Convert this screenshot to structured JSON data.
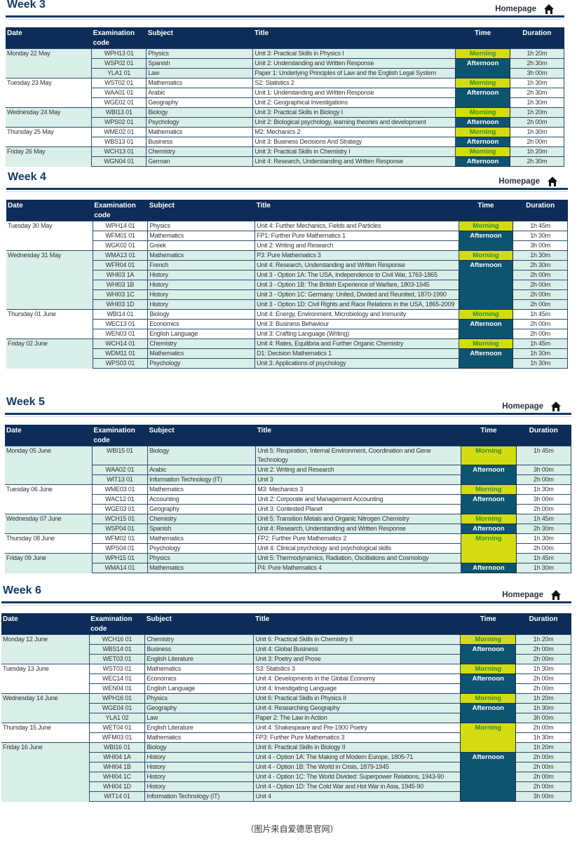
{
  "homepage_label": "Homepage",
  "columns": {
    "date": "Date",
    "code": "Examination code",
    "subject": "Subject",
    "title": "Title",
    "time": "Time",
    "duration": "Duration"
  },
  "colors": {
    "header": "#0b2d57",
    "morning_bg": "#d3dc12",
    "morning_text": "#2f8f2f",
    "afternoon_bg": "#0d5470",
    "shaded_row": "#daeeea"
  },
  "weeks": [
    {
      "title": "Week 3",
      "days": [
        {
          "date": "Monday 22 May",
          "shaded": true,
          "exams": [
            {
              "code": "WPH13 01",
              "subject": "Physics",
              "title": "Unit 3: Practical Skills in Physics I",
              "session": "Morning",
              "duration": "1h 20m"
            },
            {
              "code": "WSP02 01",
              "subject": "Spanish",
              "title": "Unit 2: Understanding and Written Response",
              "session": "Afternoon",
              "duration": "2h 30m"
            },
            {
              "code": "YLA1 01",
              "subject": "Law",
              "title": "Paper 1: Underlying Principles of Law and the English Legal System",
              "session": "Afternoon",
              "duration": "3h 00m"
            }
          ]
        },
        {
          "date": "Tuesday 23 May",
          "shaded": false,
          "exams": [
            {
              "code": "WST02 01",
              "subject": "Mathematics",
              "title": "S2: Statistics 2",
              "session": "Morning",
              "duration": "1h 30m"
            },
            {
              "code": "WAA01 01",
              "subject": "Arabic",
              "title": "Unit 1: Understanding and Written Response",
              "session": "Afternoon",
              "duration": "2h 30m"
            },
            {
              "code": "WGE02 01",
              "subject": "Geography",
              "title": "Unit 2: Geographical Investigations",
              "session": "Afternoon",
              "duration": "1h 30m"
            }
          ]
        },
        {
          "date": "Wednesday 24 May",
          "shaded": true,
          "exams": [
            {
              "code": "WBI13 01",
              "subject": "Biology",
              "title": "Unit 3: Practical Skills in Biology I",
              "session": "Morning",
              "duration": "1h 20m"
            },
            {
              "code": "WPS02 01",
              "subject": "Psychology",
              "title": "Unit 2: Biological psychology, learning theories and development",
              "session": "Afternoon",
              "duration": "2h 00m"
            }
          ]
        },
        {
          "date": "Thursday 25 May",
          "shaded": false,
          "exams": [
            {
              "code": "WME02 01",
              "subject": "Mathematics",
              "title": "M2: Mechanics 2",
              "session": "Morning",
              "duration": "1h 30m"
            },
            {
              "code": "WBS13 01",
              "subject": "Business",
              "title": "Unit 3: Business Decisions And Strategy",
              "session": "Afternoon",
              "duration": "2h 00m"
            }
          ]
        },
        {
          "date": "Friday 26 May",
          "shaded": true,
          "exams": [
            {
              "code": "WCH13 01",
              "subject": "Chemistry",
              "title": "Unit 3: Practical Skills in Chemistry I",
              "session": "Morning",
              "duration": "1h 20m"
            },
            {
              "code": "WGN04 01",
              "subject": "German",
              "title": "Unit 4: Research, Understanding and Written Response",
              "session": "Afternoon",
              "duration": "2h 30m"
            }
          ]
        }
      ]
    },
    {
      "title": "Week 4",
      "days": [
        {
          "date": "Tuesday 30 May",
          "shaded": false,
          "exams": [
            {
              "code": "WPH14 01",
              "subject": "Physics",
              "title": "Unit 4: Further Mechanics, Fields and Particles",
              "session": "Morning",
              "duration": "1h 45m"
            },
            {
              "code": "WFM01 01",
              "subject": "Mathematics",
              "title": "FP1: Further Pure Mathematics 1",
              "session": "Afternoon",
              "duration": "1h 30m"
            },
            {
              "code": "WGK02 01",
              "subject": "Greek",
              "title": "Unit 2: Writing and Research",
              "session": "Afternoon",
              "duration": "3h 00m"
            }
          ]
        },
        {
          "date": "Wednesday 31 May",
          "shaded": true,
          "exams": [
            {
              "code": "WMA13 01",
              "subject": "Mathematics",
              "title": "P3: Pure Mathematics 3",
              "session": "Morning",
              "duration": "1h 30m"
            },
            {
              "code": "WFR04 01",
              "subject": "French",
              "title": "Unit 4: Research, Understanding and Written Response",
              "session": "Afternoon",
              "duration": "2h 30m"
            },
            {
              "code": "WHI03 1A",
              "subject": "History",
              "title": "Unit 3 - Option 1A: The USA, Independence to Civil War, 1763-1865",
              "session": "Afternoon",
              "duration": "2h 00m"
            },
            {
              "code": "WHI03 1B",
              "subject": "History",
              "title": "Unit 3 - Option 1B: The British Experience of Warfare, 1803-1945",
              "session": "Afternoon",
              "duration": "2h 00m"
            },
            {
              "code": "WHI03 1C",
              "subject": "History",
              "title": "Unit 3 - Option 1C: Germany: United, Divided and Reunited, 1870-1990",
              "session": "Afternoon",
              "duration": "2h 00m"
            },
            {
              "code": "WHI03 1D",
              "subject": "History",
              "title": "Unit 3 - Option 1D: Civil Rights and Race Relations in the USA, 1865-2009",
              "session": "Afternoon",
              "duration": "2h 00m"
            }
          ]
        },
        {
          "date": "Thursday 01 June",
          "shaded": false,
          "exams": [
            {
              "code": "WBI14 01",
              "subject": "Biology",
              "title": "Unit 4: Energy, Environment, Microbiology and Immunity",
              "session": "Morning",
              "duration": "1h 45m"
            },
            {
              "code": "WEC13 01",
              "subject": "Economics",
              "title": "Unit 3: Business Behaviour",
              "session": "Afternoon",
              "duration": "2h 00m"
            },
            {
              "code": "WEN03 01",
              "subject": "English Language",
              "title": "Unit 3: Crafting Language (Writing)",
              "session": "Afternoon",
              "duration": "2h 00m"
            }
          ]
        },
        {
          "date": "Friday 02 June",
          "shaded": true,
          "exams": [
            {
              "code": "WCH14 01",
              "subject": "Chemistry",
              "title": "Unit 4: Rates, Equilibria and Further Organic Chemistry",
              "session": "Morning",
              "duration": "1h 45m"
            },
            {
              "code": "WDM11 01",
              "subject": "Mathematics",
              "title": "D1: Decision Mathematics 1",
              "session": "Afternoon",
              "duration": "1h 30m"
            },
            {
              "code": "WPS03 01",
              "subject": "Psychology",
              "title": "Unit 3: Applications of psychology",
              "session": "Afternoon",
              "duration": "1h 30m"
            }
          ]
        }
      ]
    },
    {
      "title": "Week 5",
      "days": [
        {
          "date": "Monday 05 June",
          "shaded": true,
          "exams": [
            {
              "code": "WBI15 01",
              "subject": "Biology",
              "title": "Unit 5: Respiration, Internal Environment, Coordination and Gene Technology",
              "session": "Morning",
              "duration": "1h 45m"
            },
            {
              "code": "WAA02 01",
              "subject": "Arabic",
              "title": "Unit 2: Writing and Research",
              "session": "Afternoon",
              "duration": "3h 00m"
            },
            {
              "code": "WIT13 01",
              "subject": "Information Technology (IT)",
              "title": "Unit 3",
              "session": "Afternoon",
              "duration": "2h 00m"
            }
          ]
        },
        {
          "date": "Tuesday 06 June",
          "shaded": false,
          "exams": [
            {
              "code": "WME03 01",
              "subject": "Mathematics",
              "title": "M3: Mechanics 3",
              "session": "Morning",
              "duration": "1h 30m"
            },
            {
              "code": "WAC12 01",
              "subject": "Accounting",
              "title": "Unit 2: Corporate and Management Accounting",
              "session": "Afternoon",
              "duration": "3h 00m"
            },
            {
              "code": "WGE03 01",
              "subject": "Geography",
              "title": "Unit 3: Contested Planet",
              "session": "Afternoon",
              "duration": "2h 00m"
            }
          ]
        },
        {
          "date": "Wednesday 07 June",
          "shaded": true,
          "exams": [
            {
              "code": "WCH15 01",
              "subject": "Chemistry",
              "title": "Unit 5: Transition Metals and Organic Nitrogen Chemistry",
              "session": "Morning",
              "duration": "1h 45m"
            },
            {
              "code": "WSP04 01",
              "subject": "Spanish",
              "title": "Unit 4: Research, Understanding and Written Response",
              "session": "Afternoon",
              "duration": "2h 30m"
            }
          ]
        },
        {
          "date": "Thursday 08 June",
          "shaded": false,
          "exams": [
            {
              "code": "WFM02 01",
              "subject": "Mathematics",
              "title": "FP2: Further Pure Mathematics 2",
              "session": "Morning",
              "duration": "1h 30m"
            },
            {
              "code": "WPS04 01",
              "subject": "Psychology",
              "title": "Unit 4: Clinical psychology and psychological skills",
              "session": "Morning",
              "duration": "2h 00m"
            }
          ]
        },
        {
          "date": "Friday 09 June",
          "shaded": true,
          "exams": [
            {
              "code": "WPH15 01",
              "subject": "Physics",
              "title": "Unit 5: Thermodynamics, Radiation, Oscillations and Cosmology",
              "session": "Morning",
              "duration": "1h 45m"
            },
            {
              "code": "WMA14 01",
              "subject": "Mathematics",
              "title": "P4: Pure Mathematics 4",
              "session": "Afternoon",
              "duration": "1h 30m"
            }
          ]
        }
      ]
    },
    {
      "title": "Week 6",
      "days": [
        {
          "date": "Monday 12 June",
          "shaded": true,
          "exams": [
            {
              "code": "WCH16 01",
              "subject": "Chemistry",
              "title": "Unit 6: Practical Skills in Chemistry II",
              "session": "Morning",
              "duration": "1h 20m"
            },
            {
              "code": "WBS14 01",
              "subject": "Business",
              "title": "Unit 4: Global Business",
              "session": "Afternoon",
              "duration": "2h 00m"
            },
            {
              "code": "WET03 01",
              "subject": "English Literature",
              "title": "Unit 3: Poetry and Prose",
              "session": "Afternoon",
              "duration": "2h 00m"
            }
          ]
        },
        {
          "date": "Tuesday 13 June",
          "shaded": false,
          "exams": [
            {
              "code": "WST03 01",
              "subject": "Mathematics",
              "title": "S3: Statistics 3",
              "session": "Morning",
              "duration": "1h 30m"
            },
            {
              "code": "WEC14 01",
              "subject": "Economics",
              "title": "Unit 4: Developments in the Global Economy",
              "session": "Afternoon",
              "duration": "2h 00m"
            },
            {
              "code": "WEN04 01",
              "subject": "English Language",
              "title": "Unit 4: Investigating Language",
              "session": "Afternoon",
              "duration": "2h 00m"
            }
          ]
        },
        {
          "date": "Wednesday 14 June",
          "shaded": true,
          "exams": [
            {
              "code": "WPH16 01",
              "subject": "Physics",
              "title": "Unit 6: Practical Skills in Physics II",
              "session": "Morning",
              "duration": "1h 20m"
            },
            {
              "code": "WGE04 01",
              "subject": "Geography",
              "title": "Unit 4: Researching Geography",
              "session": "Afternoon",
              "duration": "1h 30m"
            },
            {
              "code": "YLA1 02",
              "subject": "Law",
              "title": "Paper 2: The Law in Action",
              "session": "Afternoon",
              "duration": "3h 00m"
            }
          ]
        },
        {
          "date": "Thursday 15 June",
          "shaded": false,
          "exams": [
            {
              "code": "WET04 01",
              "subject": "English Literature",
              "title": "Unit 4: Shakespeare and Pre-1900 Poetry",
              "session": "Morning",
              "duration": "2h 00m"
            },
            {
              "code": "WFM03 01",
              "subject": "Mathematics",
              "title": "FP3: Further Pure Mathematics 3",
              "session": "Morning",
              "duration": "1h 30m"
            }
          ]
        },
        {
          "date": "Friday 16 June",
          "shaded": true,
          "exams": [
            {
              "code": "WBI16 01",
              "subject": "Biology",
              "title": "Unit 6: Practical Skills in Biology II",
              "session": "Morning",
              "duration": "1h 20m"
            },
            {
              "code": "WHI04 1A",
              "subject": "History",
              "title": "Unit 4 - Option 1A: The Making of Modern Europe, 1805-71",
              "session": "Afternoon",
              "duration": "2h 00m"
            },
            {
              "code": "WHI04 1B",
              "subject": "History",
              "title": "Unit 4 - Option 1B: The World in Crisis, 1879-1945",
              "session": "Afternoon",
              "duration": "2h 00m"
            },
            {
              "code": "WHI04 1C",
              "subject": "History",
              "title": "Unit 4 - Option 1C: The World Divided: Superpower Relations, 1943-90",
              "session": "Afternoon",
              "duration": "2h 00m"
            },
            {
              "code": "WHI04 1D",
              "subject": "History",
              "title": "Unit 4 - Option 1D: The Cold War and Hot War in Asia, 1945-90",
              "session": "Afternoon",
              "duration": "2h 00m"
            },
            {
              "code": "WIT14 01",
              "subject": "Information Technology (IT)",
              "title": "Unit 4",
              "session": "Afternoon",
              "duration": "3h 00m"
            }
          ]
        }
      ]
    }
  ],
  "caption": "（图片来自爱德思官网）"
}
